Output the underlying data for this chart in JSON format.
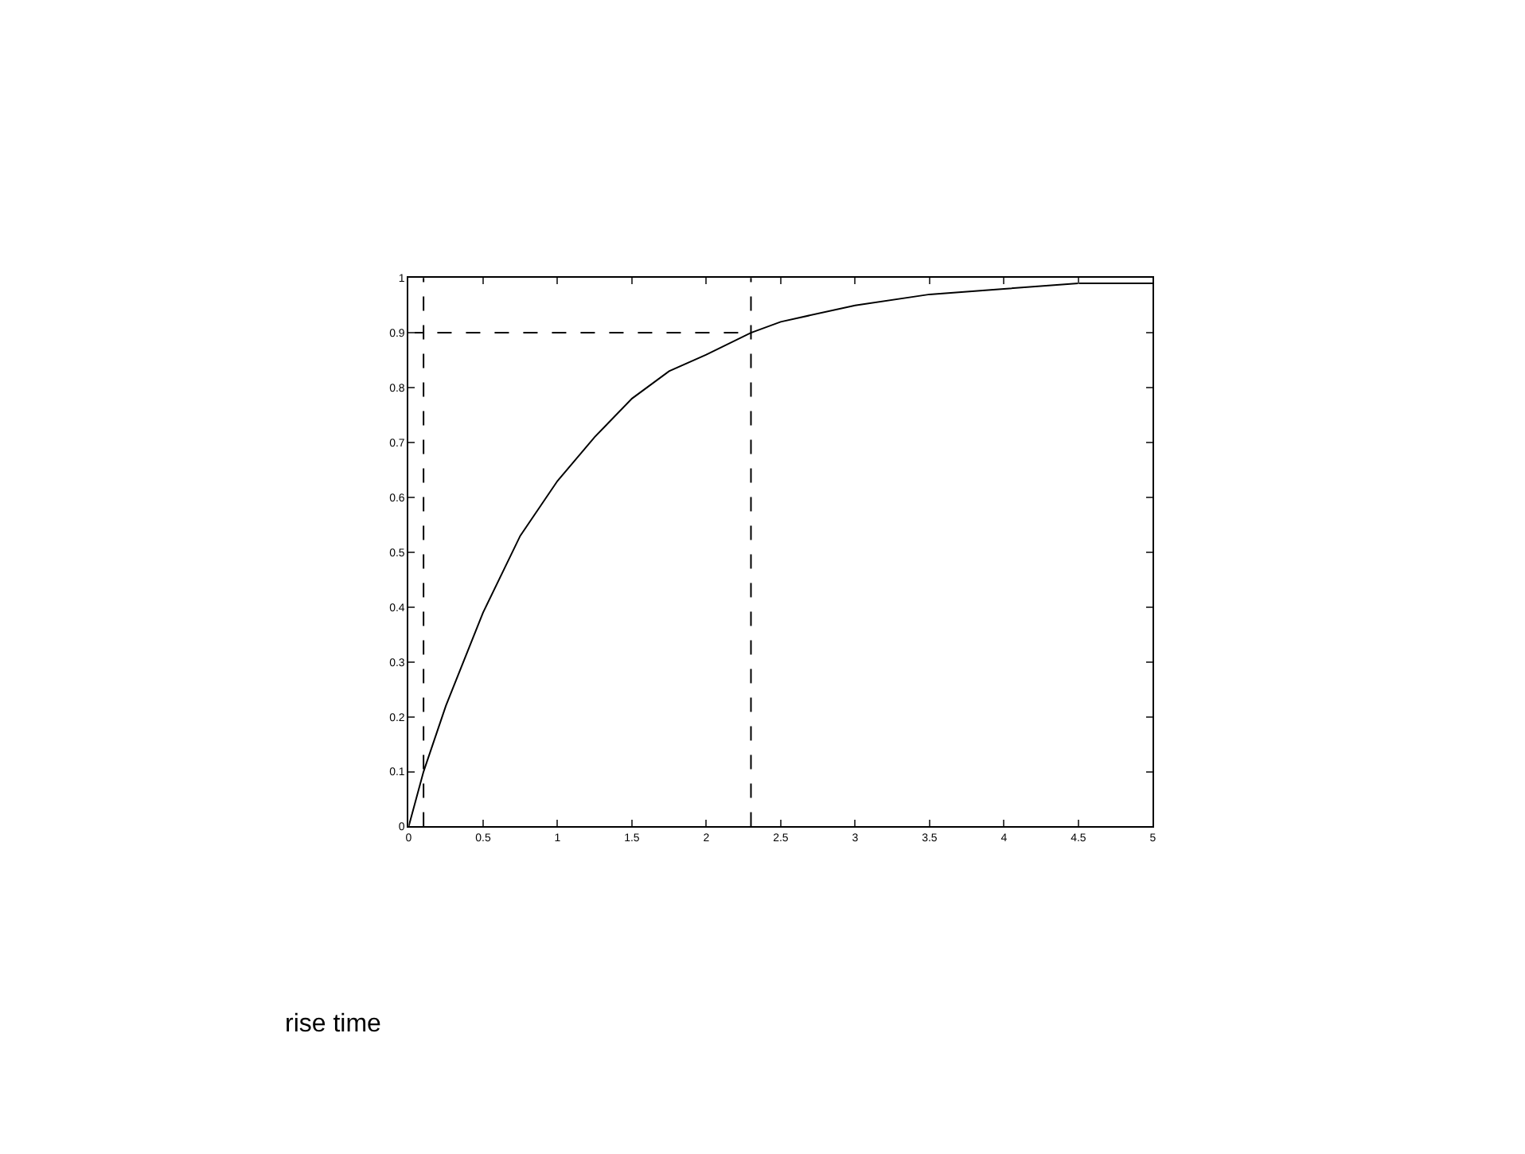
{
  "chart_data": {
    "type": "line",
    "series": [
      {
        "color": "#000000",
        "x": [
          0,
          0.1,
          0.25,
          0.5,
          0.75,
          1,
          1.25,
          1.5,
          1.75,
          2,
          2.3,
          2.5,
          3,
          3.5,
          4,
          4.5,
          5
        ],
        "values": [
          0,
          0.1,
          0.22,
          0.39,
          0.53,
          0.63,
          0.71,
          0.78,
          0.83,
          0.86,
          0.9,
          0.92,
          0.95,
          0.97,
          0.98,
          0.99,
          0.99
        ]
      },
      {
        "color": "#000000",
        "x": [
          0,
          2.3
        ],
        "values": [
          0.9,
          0.9
        ],
        "line_style": "dashed"
      }
    ],
    "ref_lines": [
      {
        "axis": "x",
        "value": 0.1,
        "color": "#000000",
        "line_style": "dashed"
      },
      {
        "axis": "x",
        "value": 2.3,
        "color": "#000000",
        "line_style": "dashed"
      }
    ],
    "xlim": [
      0,
      5
    ],
    "xticks": [
      0,
      0.5,
      1,
      1.5,
      2,
      2.5,
      3,
      3.5,
      4,
      4.5,
      5
    ],
    "ylim": [
      0,
      1
    ],
    "yticks": [
      0,
      0.1,
      0.2,
      0.3,
      0.4,
      0.5,
      0.6,
      0.7,
      0.8,
      0.9,
      1
    ],
    "legend": false,
    "annotations": [
      "rise time"
    ]
  }
}
